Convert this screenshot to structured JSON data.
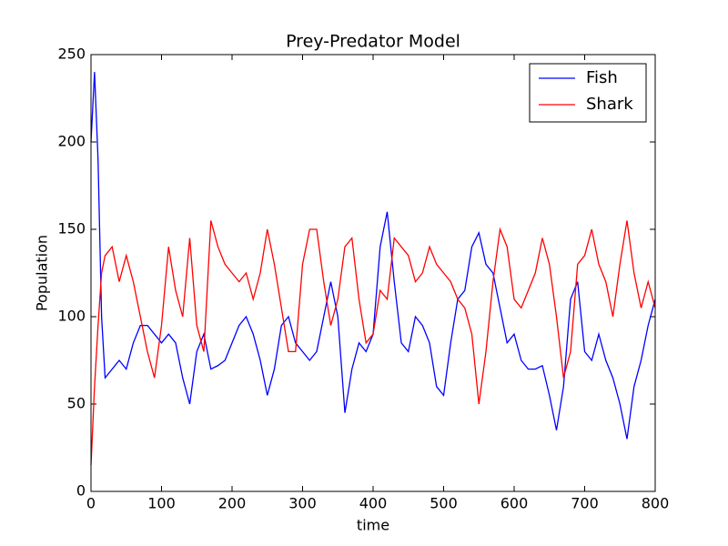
{
  "chart_data": {
    "type": "line",
    "title": "Prey-Predator Model",
    "xlabel": "time",
    "ylabel": "Population",
    "x": [
      0,
      5,
      10,
      15,
      20,
      30,
      40,
      50,
      60,
      70,
      80,
      90,
      100,
      110,
      120,
      130,
      140,
      150,
      160,
      170,
      180,
      190,
      200,
      210,
      220,
      230,
      240,
      250,
      260,
      270,
      280,
      290,
      300,
      310,
      320,
      330,
      340,
      350,
      360,
      370,
      380,
      390,
      400,
      410,
      420,
      430,
      440,
      450,
      460,
      470,
      480,
      490,
      500,
      510,
      520,
      530,
      540,
      550,
      560,
      570,
      580,
      590,
      600,
      610,
      620,
      630,
      640,
      650,
      660,
      670,
      680,
      690,
      700,
      710,
      720,
      730,
      740,
      750,
      760,
      770,
      780,
      790,
      800
    ],
    "series": [
      {
        "name": "Fish",
        "color": "#0000ff",
        "values": [
          200,
          240,
          190,
          100,
          65,
          70,
          75,
          70,
          85,
          95,
          95,
          90,
          85,
          90,
          85,
          65,
          50,
          80,
          90,
          70,
          72,
          75,
          85,
          95,
          100,
          90,
          75,
          55,
          70,
          95,
          100,
          85,
          80,
          75,
          80,
          100,
          120,
          100,
          45,
          70,
          85,
          80,
          90,
          140,
          160,
          120,
          85,
          80,
          100,
          95,
          85,
          60,
          55,
          85,
          110,
          115,
          140,
          148,
          130,
          125,
          105,
          85,
          90,
          75,
          70,
          70,
          72,
          55,
          35,
          60,
          110,
          120,
          80,
          75,
          90,
          75,
          65,
          50,
          30,
          60,
          75,
          95,
          110
        ]
      },
      {
        "name": "Shark",
        "color": "#ff0000",
        "values": [
          15,
          60,
          95,
          125,
          135,
          140,
          120,
          135,
          120,
          100,
          80,
          65,
          95,
          140,
          115,
          100,
          145,
          95,
          80,
          155,
          140,
          130,
          125,
          120,
          125,
          110,
          125,
          150,
          130,
          105,
          80,
          80,
          130,
          150,
          150,
          120,
          95,
          110,
          140,
          145,
          110,
          85,
          90,
          115,
          110,
          145,
          140,
          135,
          120,
          125,
          140,
          130,
          125,
          120,
          110,
          105,
          90,
          50,
          80,
          120,
          150,
          140,
          110,
          105,
          115,
          125,
          145,
          130,
          100,
          65,
          80,
          130,
          135,
          150,
          130,
          120,
          100,
          130,
          155,
          125,
          105,
          120,
          105
        ]
      }
    ],
    "xlim": [
      0,
      800
    ],
    "xticks": [
      0,
      100,
      200,
      300,
      400,
      500,
      600,
      700,
      800
    ],
    "ylim": [
      0,
      250
    ],
    "yticks": [
      0,
      50,
      100,
      150,
      200,
      250
    ],
    "legend": "upper right"
  }
}
